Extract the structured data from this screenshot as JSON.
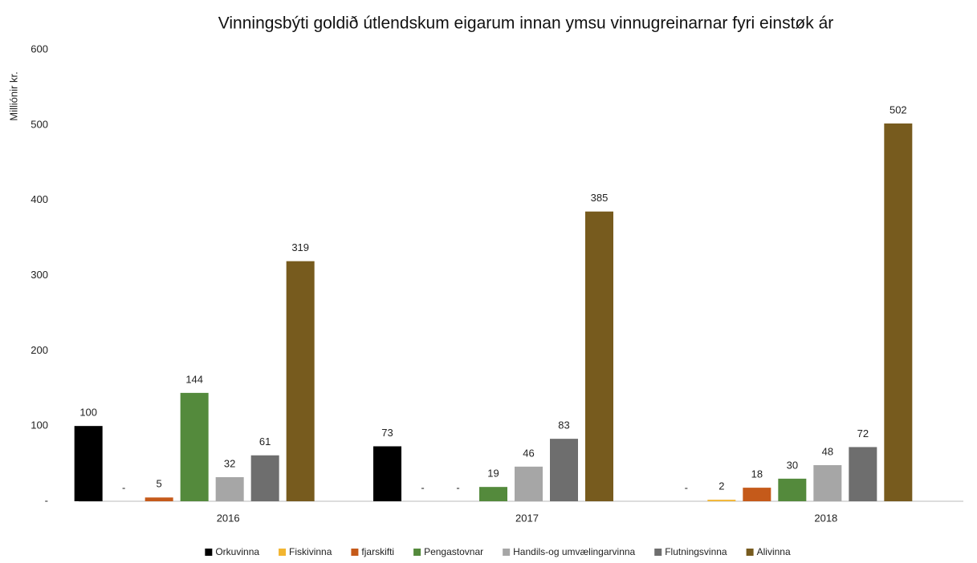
{
  "chart_data": {
    "type": "bar",
    "title": "Vinningsbýti goldið útlendskum eigarum innan ymsu vinnugreinarnar fyri einstøk ár",
    "y_label": "Milliónir kr.",
    "categories": [
      "2016",
      "2017",
      "2018"
    ],
    "series": [
      {
        "name": "Orkuvinna",
        "color": "#000000",
        "values": [
          100,
          73,
          0
        ],
        "value_labels": [
          "100",
          "73",
          "-"
        ]
      },
      {
        "name": "Fiskivinna",
        "color": "#f2b531",
        "values": [
          0,
          0,
          2
        ],
        "value_labels": [
          "-",
          "-",
          "2"
        ]
      },
      {
        "name": "fjarskifti",
        "color": "#c55a1a",
        "values": [
          5,
          0,
          18
        ],
        "value_labels": [
          "5",
          "-",
          "18"
        ]
      },
      {
        "name": "Pengastovnar",
        "color": "#548a3c",
        "values": [
          144,
          19,
          30
        ]
      },
      {
        "name": "Handils-og umvælingarvinna",
        "color": "#a6a6a6",
        "values": [
          32,
          46,
          48
        ]
      },
      {
        "name": "Flutningsvinna",
        "color": "#6e6e6e",
        "values": [
          61,
          83,
          72
        ]
      },
      {
        "name": "Alivinna",
        "color": "#775b1e",
        "values": [
          319,
          385,
          502
        ]
      }
    ],
    "ylim": [
      0,
      600
    ],
    "yticks": [
      {
        "value": 0,
        "label": "-"
      },
      100,
      200,
      300,
      400,
      500,
      600
    ],
    "grid": false,
    "legend": "bottom"
  }
}
